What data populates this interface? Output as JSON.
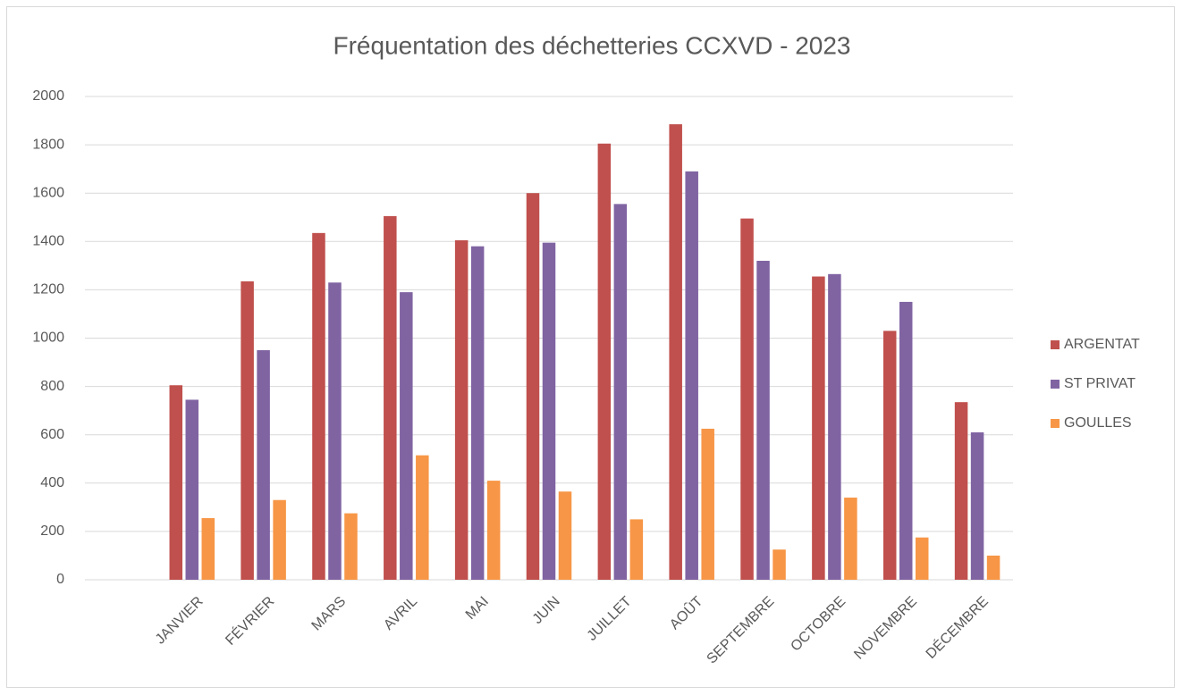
{
  "chart_data": {
    "type": "bar",
    "title": "Fréquentation des déchetteries CCXVD - 2023",
    "categories": [
      null,
      "JANVIER",
      "FÉVRIER",
      "MARS",
      "AVRIL",
      "MAI",
      "JUIN",
      "JUILLET",
      "AOÛT",
      "SEPTEMBRE",
      "OCTOBRE",
      "NOVEMBRE",
      "DÉCEMBRE"
    ],
    "series": [
      {
        "name": "ARGENTAT",
        "color": "#c0504d",
        "values": [
          null,
          805,
          1235,
          1435,
          1505,
          1405,
          1600,
          1805,
          1885,
          1495,
          1255,
          1030,
          735
        ]
      },
      {
        "name": "ST PRIVAT",
        "color": "#8064a2",
        "values": [
          null,
          745,
          950,
          1230,
          1190,
          1380,
          1395,
          1555,
          1690,
          1320,
          1265,
          1150,
          610
        ]
      },
      {
        "name": "GOULLES",
        "color": "#f79646",
        "values": [
          null,
          255,
          330,
          275,
          515,
          410,
          365,
          250,
          625,
          125,
          340,
          175,
          100
        ]
      }
    ],
    "ylim": [
      0,
      2000
    ],
    "yticks": [
      0,
      200,
      400,
      600,
      800,
      1000,
      1200,
      1400,
      1600,
      1800,
      2000
    ],
    "grid": true,
    "legend": "right"
  }
}
